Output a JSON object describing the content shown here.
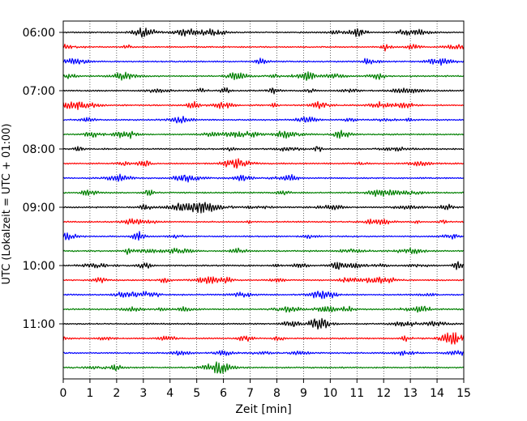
{
  "chart_data": {
    "type": "line",
    "title": "",
    "xlabel": "Zeit  [min]",
    "ylabel": "UTC (Lokalzeit = UTC + 01:00)",
    "xlim": [
      0,
      15
    ],
    "x_ticks": [
      "0",
      "1",
      "2",
      "3",
      "4",
      "5",
      "6",
      "7",
      "8",
      "9",
      "10",
      "11",
      "12",
      "13",
      "14",
      "15"
    ],
    "y_tick_labels": [
      "06:00",
      "07:00",
      "08:00",
      "09:00",
      "10:00",
      "11:00"
    ],
    "trace_start_times": [
      "06:00",
      "06:15",
      "06:30",
      "06:45",
      "07:00",
      "07:15",
      "07:30",
      "07:45",
      "08:00",
      "08:15",
      "08:30",
      "08:45",
      "09:00",
      "09:15",
      "09:30",
      "09:45",
      "10:00",
      "10:15",
      "10:30",
      "10:45",
      "11:00",
      "11:15",
      "11:30",
      "11:45"
    ],
    "trace_colors": [
      "#000000",
      "#ff0000",
      "#0000ff",
      "#008000"
    ],
    "grid": "vertical dotted lines at each minute",
    "legend": "none"
  }
}
